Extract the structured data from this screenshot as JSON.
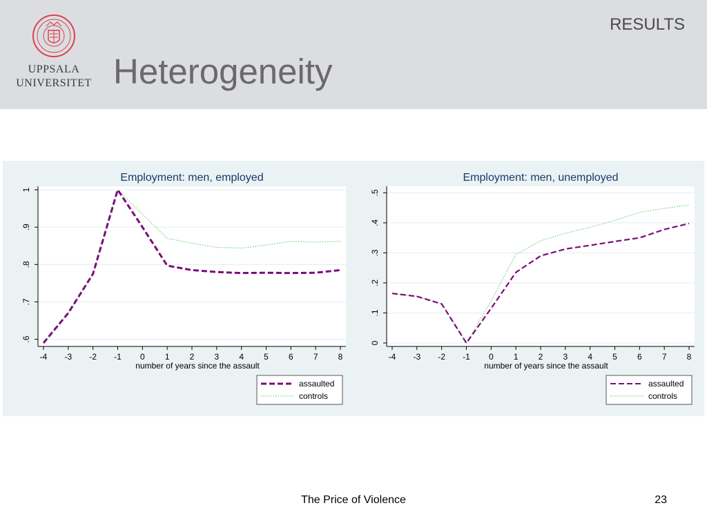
{
  "header": {
    "section_label": "RESULTS",
    "title": "Heterogeneity",
    "logo": {
      "line1": "UPPSALA",
      "line2": "UNIVERSITET",
      "seal_icon": "university-seal-icon",
      "seal_color": "#d9404e"
    }
  },
  "footer": {
    "text": "The Price of Violence",
    "page_number": "23"
  },
  "colors": {
    "assaulted": "#7a0a7a",
    "controls": "#7ed07e",
    "panel_bg": "#eaf2f3",
    "header_bg": "#dcdde0"
  },
  "chart_data": [
    {
      "type": "line",
      "title": "Employment: men, employed",
      "xlabel": "number of years since the assault",
      "ylabel": "",
      "x": [
        -4,
        -3,
        -2,
        -1,
        0,
        1,
        2,
        3,
        4,
        5,
        6,
        7,
        8
      ],
      "xticks": [
        "-4",
        "-3",
        "-2",
        "-1",
        "0",
        "1",
        "2",
        "3",
        "4",
        "5",
        "6",
        "7",
        "8"
      ],
      "yticks": [
        {
          "value": 0.6,
          "label": ".6"
        },
        {
          "value": 0.7,
          "label": ".7"
        },
        {
          "value": 0.8,
          "label": ".8"
        },
        {
          "value": 0.9,
          "label": ".9"
        },
        {
          "value": 1.0,
          "label": "1"
        }
      ],
      "xlim": [
        -4,
        8
      ],
      "ylim": [
        0.59,
        1.0
      ],
      "grid": true,
      "legend_position": "bottom-right",
      "series": [
        {
          "name": "assaulted",
          "style": "dashed",
          "values": [
            0.59,
            0.67,
            0.775,
            1.0,
            0.9,
            0.797,
            0.785,
            0.78,
            0.777,
            0.778,
            0.777,
            0.778,
            0.785
          ]
        },
        {
          "name": "controls",
          "style": "dotted",
          "values": [
            0.59,
            0.67,
            0.775,
            1.0,
            0.935,
            0.87,
            0.857,
            0.846,
            0.844,
            0.852,
            0.862,
            0.86,
            0.862
          ]
        }
      ]
    },
    {
      "type": "line",
      "title": "Employment: men, unemployed",
      "xlabel": "number of years since the assault",
      "ylabel": "",
      "x": [
        -4,
        -3,
        -2,
        -1,
        0,
        1,
        2,
        3,
        4,
        5,
        6,
        7,
        8
      ],
      "xticks": [
        "-4",
        "-3",
        "-2",
        "-1",
        "0",
        "1",
        "2",
        "3",
        "4",
        "5",
        "6",
        "7",
        "8"
      ],
      "yticks": [
        {
          "value": 0,
          "label": "0"
        },
        {
          "value": 0.1,
          "label": ".1"
        },
        {
          "value": 0.2,
          "label": ".2"
        },
        {
          "value": 0.3,
          "label": ".3"
        },
        {
          "value": 0.4,
          "label": ".4"
        },
        {
          "value": 0.5,
          "label": ".5"
        }
      ],
      "xlim": [
        -4,
        8
      ],
      "ylim": [
        0,
        0.51
      ],
      "grid": true,
      "legend_position": "bottom-right",
      "series": [
        {
          "name": "assaulted",
          "style": "dashed",
          "values": [
            0.165,
            0.155,
            0.13,
            0.0,
            0.115,
            0.235,
            0.29,
            0.313,
            0.325,
            0.338,
            0.35,
            0.378,
            0.398
          ]
        },
        {
          "name": "controls",
          "style": "dotted",
          "values": [
            0.165,
            0.155,
            0.13,
            0.0,
            0.14,
            0.295,
            0.34,
            0.365,
            0.385,
            0.408,
            0.435,
            0.448,
            0.46
          ]
        }
      ]
    }
  ]
}
